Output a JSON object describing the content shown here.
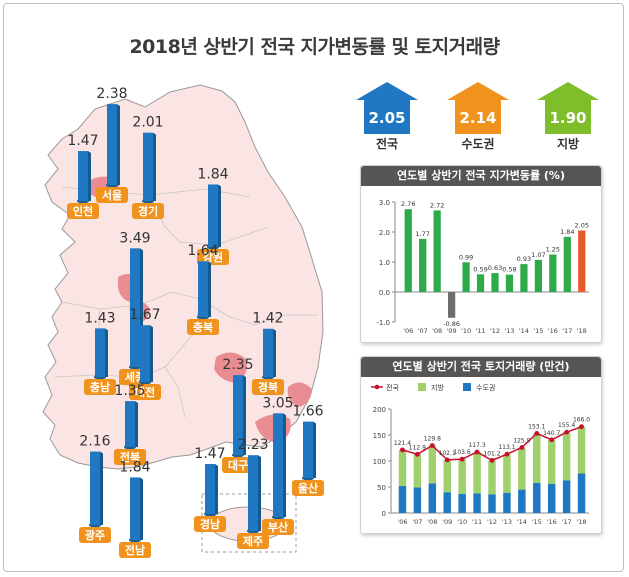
{
  "page": {
    "title": "2018년 상반기 전국 지가변동률 및 토지거래량"
  },
  "summary": [
    {
      "value": "2.05",
      "label": "전국",
      "color": "#1f78c1"
    },
    {
      "value": "2.14",
      "label": "수도권",
      "color": "#f0931e"
    },
    {
      "value": "1.90",
      "label": "지방",
      "color": "#7dbe2a"
    }
  ],
  "map_regions": [
    {
      "name": "인천",
      "value": "1.47"
    },
    {
      "name": "서울",
      "value": "2.38"
    },
    {
      "name": "경기",
      "value": "2.01"
    },
    {
      "name": "강원",
      "value": "1.84"
    },
    {
      "name": "충북",
      "value": "1.64"
    },
    {
      "name": "세종",
      "value": "3.49"
    },
    {
      "name": "충남",
      "value": "1.43"
    },
    {
      "name": "대전",
      "value": "1.67"
    },
    {
      "name": "경북",
      "value": "1.42"
    },
    {
      "name": "전북",
      "value": "1.35"
    },
    {
      "name": "대구",
      "value": "2.35"
    },
    {
      "name": "울산",
      "value": "1.66"
    },
    {
      "name": "광주",
      "value": "2.16"
    },
    {
      "name": "전남",
      "value": "1.84"
    },
    {
      "name": "경남",
      "value": "1.47"
    },
    {
      "name": "부산",
      "value": "3.05"
    },
    {
      "name": "제주",
      "value": "2.23"
    }
  ],
  "chart_data": [
    {
      "type": "bar",
      "title": "연도별 상반기 전국 지가변동률 (%)",
      "categories": [
        "'06",
        "'07",
        "'08",
        "'09",
        "'10",
        "'11",
        "'12",
        "'13",
        "'14",
        "'15",
        "'16",
        "'17",
        "'18"
      ],
      "values": [
        2.76,
        1.77,
        2.72,
        -0.86,
        0.99,
        0.59,
        0.63,
        0.58,
        0.93,
        1.07,
        1.25,
        1.84,
        2.05
      ],
      "data_labels": [
        "2.76",
        "1.77",
        "2.72",
        "-0.86",
        "0.99",
        "0.59",
        "0.63",
        "0.58",
        "0.93",
        "1.07",
        "1.25",
        "1.84",
        "2.05"
      ],
      "ylim": [
        -1.0,
        3.0
      ],
      "yticks": [
        "3.0",
        "2.0",
        "1.0",
        "0.0",
        "-1.0"
      ],
      "colors": {
        "positive": "#2eaa4a",
        "negative": "#6d6d6d",
        "latest": "#e8592b"
      },
      "grid": false
    },
    {
      "type": "bar",
      "stacked": true,
      "title": "연도별 상반기 전국 토지거래량 (만건)",
      "categories": [
        "'06",
        "'07",
        "'08",
        "'09",
        "'10",
        "'11",
        "'12",
        "'13",
        "'14",
        "'15",
        "'16",
        "'17",
        "'18"
      ],
      "legend": [
        "전국",
        "지방",
        "수도권"
      ],
      "legend_position": "top-left",
      "series": [
        {
          "name": "수도권",
          "values": [
            52,
            49,
            57,
            40,
            37,
            38,
            36,
            39,
            45,
            58,
            56,
            63,
            76
          ],
          "color": "#1f78c1"
        },
        {
          "name": "지방",
          "values": [
            69.4,
            63.9,
            72.8,
            62.1,
            66.6,
            79.3,
            65.2,
            74.1,
            80.9,
            95.1,
            84.7,
            92.4,
            90.0
          ],
          "color": "#9fd06b"
        }
      ],
      "line": {
        "name": "전국",
        "values": [
          121.4,
          112.9,
          129.8,
          102.1,
          103.6,
          117.3,
          101.2,
          113.1,
          125.9,
          153.1,
          140.7,
          155.4,
          166.0
        ],
        "color": "#c8102e"
      },
      "data_labels": [
        "121.4",
        "112.9",
        "129.8",
        "102.1",
        "103.6",
        "117.3",
        "101.2",
        "113.1",
        "125.9",
        "153.1",
        "140.7",
        "155.4",
        "166.0"
      ],
      "ylim": [
        0,
        200
      ],
      "yticks": [
        "200",
        "150",
        "100",
        "50",
        "0"
      ],
      "grid": false
    }
  ]
}
